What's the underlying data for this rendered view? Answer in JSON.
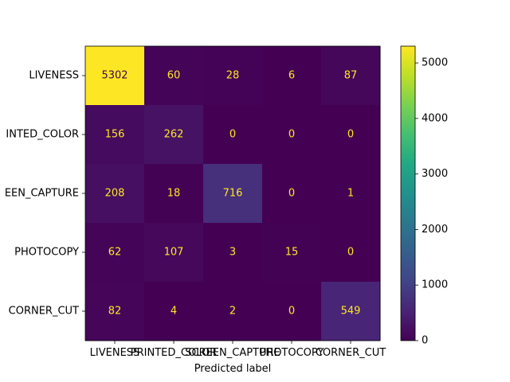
{
  "chart_data": {
    "type": "heatmap",
    "title": "",
    "xlabel": "Predicted label",
    "ylabel": "",
    "rows": [
      "LIVENESS",
      "PRINTED_COLOR",
      "SCREEN_CAPTURE",
      "PHOTOCOPY",
      "CORNER_CUT"
    ],
    "columns": [
      "LIVENESS",
      "PRINTED_COLOR",
      "SCREEN_CAPTURE",
      "PHOTOCOPY",
      "CORNER_CUT"
    ],
    "row_labels_shown": [
      "LIVENESS",
      "INTED_COLOR",
      "EEN_CAPTURE",
      "PHOTOCOPY",
      "CORNER_CUT"
    ],
    "values": [
      [
        5302,
        60,
        28,
        6,
        87
      ],
      [
        156,
        262,
        0,
        0,
        0
      ],
      [
        208,
        18,
        716,
        0,
        1
      ],
      [
        62,
        107,
        3,
        15,
        0
      ],
      [
        82,
        4,
        2,
        0,
        549
      ]
    ],
    "colormap": "viridis",
    "colorbar": {
      "min": 0,
      "max": 5302,
      "ticks": [
        0,
        1000,
        2000,
        3000,
        4000,
        5000
      ]
    },
    "colors": {
      "text_light": "#fde725",
      "text_dark": "#440154",
      "axis": "#000000"
    }
  }
}
